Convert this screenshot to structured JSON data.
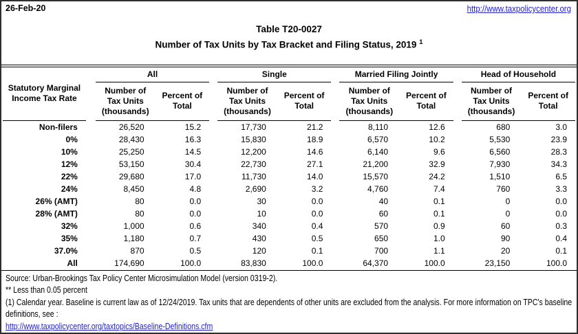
{
  "header": {
    "date": "26-Feb-20",
    "site_url": "http://www.taxpolicycenter.org"
  },
  "title": {
    "line1": "Table T20-0027",
    "line2": "Number of Tax Units by Tax Bracket and Filing Status, 2019",
    "footnote_marker": "1"
  },
  "table": {
    "row_header_label": "Statutory Marginal Income Tax Rate",
    "groups": [
      {
        "label": "All"
      },
      {
        "label": "Single"
      },
      {
        "label": "Married Filing Jointly"
      },
      {
        "label": "Head of Household"
      }
    ],
    "subheaders": {
      "units": "Number of Tax Units (thousands)",
      "percent": "Percent of Total"
    },
    "rows": [
      {
        "label": "Non-filers",
        "values": [
          "26,520",
          "15.2",
          "17,730",
          "21.2",
          "8,110",
          "12.6",
          "680",
          "3.0"
        ]
      },
      {
        "label": "0%",
        "values": [
          "28,430",
          "16.3",
          "15,830",
          "18.9",
          "6,570",
          "10.2",
          "5,530",
          "23.9"
        ]
      },
      {
        "label": "10%",
        "values": [
          "25,250",
          "14.5",
          "12,200",
          "14.6",
          "6,140",
          "9.6",
          "6,560",
          "28.3"
        ]
      },
      {
        "label": "12%",
        "values": [
          "53,150",
          "30.4",
          "22,730",
          "27.1",
          "21,200",
          "32.9",
          "7,930",
          "34.3"
        ]
      },
      {
        "label": "22%",
        "values": [
          "29,680",
          "17.0",
          "11,730",
          "14.0",
          "15,570",
          "24.2",
          "1,510",
          "6.5"
        ]
      },
      {
        "label": "24%",
        "values": [
          "8,450",
          "4.8",
          "2,690",
          "3.2",
          "4,760",
          "7.4",
          "760",
          "3.3"
        ]
      },
      {
        "label": "26% (AMT)",
        "values": [
          "80",
          "0.0",
          "30",
          "0.0",
          "40",
          "0.1",
          "0",
          "0.0"
        ]
      },
      {
        "label": "28% (AMT)",
        "values": [
          "80",
          "0.0",
          "10",
          "0.0",
          "60",
          "0.1",
          "0",
          "0.0"
        ]
      },
      {
        "label": "32%",
        "values": [
          "1,000",
          "0.6",
          "340",
          "0.4",
          "570",
          "0.9",
          "60",
          "0.3"
        ]
      },
      {
        "label": "35%",
        "values": [
          "1,180",
          "0.7",
          "430",
          "0.5",
          "650",
          "1.0",
          "90",
          "0.4"
        ]
      },
      {
        "label": "37.0%",
        "values": [
          "870",
          "0.5",
          "120",
          "0.1",
          "700",
          "1.1",
          "20",
          "0.1"
        ]
      },
      {
        "label": "All",
        "values": [
          "174,690",
          "100.0",
          "83,830",
          "100.0",
          "64,370",
          "100.0",
          "23,150",
          "100.0"
        ]
      }
    ]
  },
  "footer": {
    "source": "Source: Urban-Brookings Tax Policy Center Microsimulation Model (version 0319-2).",
    "note_less": "** Less than 0.05 percent",
    "note1": "(1) Calendar year. Baseline is current law as of 12/24/2019. Tax units that are dependents of other units are excluded from the analysis. For more information on TPC's baseline definitions, see :",
    "link": "http://www.taxpolicycenter.org/taxtopics/Baseline-Definitions.cfm"
  },
  "colors": {
    "link_blue": "#2222cc",
    "border": "#2e2e2e",
    "text": "#000000"
  }
}
